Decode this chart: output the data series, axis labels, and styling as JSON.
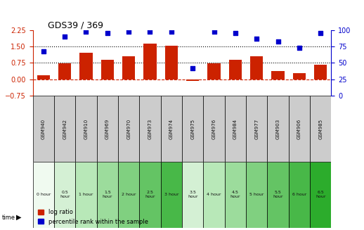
{
  "title": "GDS39 / 369",
  "samples": [
    "GSM940",
    "GSM942",
    "GSM910",
    "GSM969",
    "GSM970",
    "GSM973",
    "GSM974",
    "GSM975",
    "GSM976",
    "GSM984",
    "GSM977",
    "GSM903",
    "GSM906",
    "GSM985"
  ],
  "log_ratio": [
    0.18,
    0.72,
    1.22,
    0.88,
    1.05,
    1.62,
    1.52,
    -0.08,
    0.72,
    0.88,
    1.05,
    0.38,
    0.28,
    0.68
  ],
  "percentile": [
    68,
    90,
    97,
    95,
    97,
    97,
    97,
    42,
    97,
    95,
    87,
    82,
    73,
    95
  ],
  "time_labels": [
    "0 hour",
    "0.5\nhour",
    "1 hour",
    "1.5\nhour",
    "2 hour",
    "2.5\nhour",
    "3 hour",
    "3.5\nhour",
    "4 hour",
    "4.5\nhour",
    "5 hour",
    "5.5\nhour",
    "6 hour",
    "6.5\nhour"
  ],
  "time_colors": [
    "#e8f5e8",
    "#c8eac8",
    "#a8dba8",
    "#88cc88",
    "#68bd68",
    "#48ae48",
    "#28a028",
    "#c8eac8",
    "#a8dba8",
    "#88cc88",
    "#68bd68",
    "#48ae48",
    "#28a028",
    "#08920a"
  ],
  "bar_color": "#cc2200",
  "scatter_color": "#0000cc",
  "ylim_left": [
    -0.75,
    2.25
  ],
  "ylim_right": [
    0,
    100
  ],
  "yticks_left": [
    -0.75,
    0,
    0.75,
    1.5,
    2.25
  ],
  "yticks_right": [
    0,
    25,
    50,
    75,
    100
  ],
  "hlines": [
    0.75,
    1.5
  ],
  "background_color": "#ffffff",
  "gsm_label_color": "#333333",
  "time_row_colors_alt": [
    "#eefaee",
    "#cceecc",
    "#aadeaa",
    "#88cc88",
    "#66ba66",
    "#44a844",
    "#229622",
    "#cceecc",
    "#aadeaa",
    "#88cc88",
    "#66ba66",
    "#44a844",
    "#229622",
    "#009900"
  ]
}
